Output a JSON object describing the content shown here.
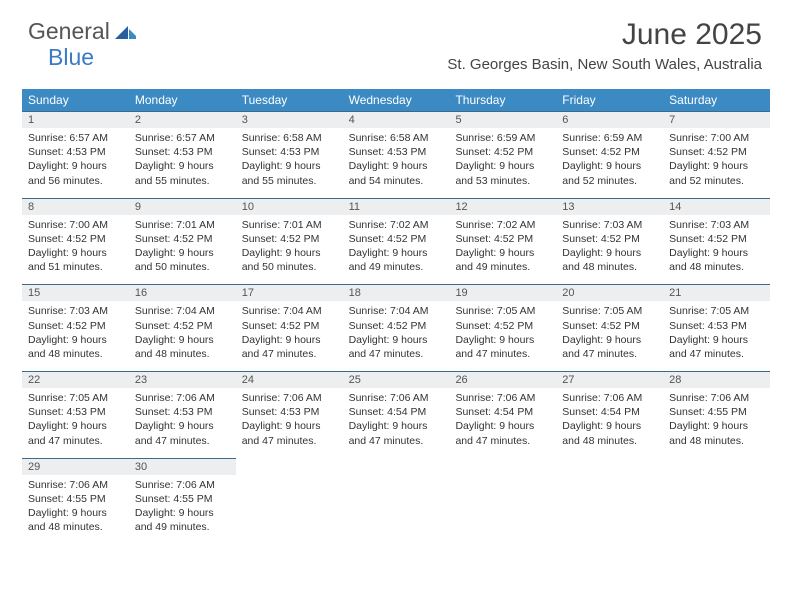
{
  "logo": {
    "general": "General",
    "blue": "Blue"
  },
  "title": "June 2025",
  "location": "St. Georges Basin, New South Wales, Australia",
  "colors": {
    "header_bar": "#3b8ac4",
    "day_top_border": "#3b6b8c",
    "day_num_bg": "#eceeef",
    "logo_blue": "#3b7bc4",
    "text": "#333333"
  },
  "weekdays": [
    "Sunday",
    "Monday",
    "Tuesday",
    "Wednesday",
    "Thursday",
    "Friday",
    "Saturday"
  ],
  "weeks": [
    [
      {
        "n": "1",
        "sr": "Sunrise: 6:57 AM",
        "ss": "Sunset: 4:53 PM",
        "d1": "Daylight: 9 hours",
        "d2": "and 56 minutes."
      },
      {
        "n": "2",
        "sr": "Sunrise: 6:57 AM",
        "ss": "Sunset: 4:53 PM",
        "d1": "Daylight: 9 hours",
        "d2": "and 55 minutes."
      },
      {
        "n": "3",
        "sr": "Sunrise: 6:58 AM",
        "ss": "Sunset: 4:53 PM",
        "d1": "Daylight: 9 hours",
        "d2": "and 55 minutes."
      },
      {
        "n": "4",
        "sr": "Sunrise: 6:58 AM",
        "ss": "Sunset: 4:53 PM",
        "d1": "Daylight: 9 hours",
        "d2": "and 54 minutes."
      },
      {
        "n": "5",
        "sr": "Sunrise: 6:59 AM",
        "ss": "Sunset: 4:52 PM",
        "d1": "Daylight: 9 hours",
        "d2": "and 53 minutes."
      },
      {
        "n": "6",
        "sr": "Sunrise: 6:59 AM",
        "ss": "Sunset: 4:52 PM",
        "d1": "Daylight: 9 hours",
        "d2": "and 52 minutes."
      },
      {
        "n": "7",
        "sr": "Sunrise: 7:00 AM",
        "ss": "Sunset: 4:52 PM",
        "d1": "Daylight: 9 hours",
        "d2": "and 52 minutes."
      }
    ],
    [
      {
        "n": "8",
        "sr": "Sunrise: 7:00 AM",
        "ss": "Sunset: 4:52 PM",
        "d1": "Daylight: 9 hours",
        "d2": "and 51 minutes."
      },
      {
        "n": "9",
        "sr": "Sunrise: 7:01 AM",
        "ss": "Sunset: 4:52 PM",
        "d1": "Daylight: 9 hours",
        "d2": "and 50 minutes."
      },
      {
        "n": "10",
        "sr": "Sunrise: 7:01 AM",
        "ss": "Sunset: 4:52 PM",
        "d1": "Daylight: 9 hours",
        "d2": "and 50 minutes."
      },
      {
        "n": "11",
        "sr": "Sunrise: 7:02 AM",
        "ss": "Sunset: 4:52 PM",
        "d1": "Daylight: 9 hours",
        "d2": "and 49 minutes."
      },
      {
        "n": "12",
        "sr": "Sunrise: 7:02 AM",
        "ss": "Sunset: 4:52 PM",
        "d1": "Daylight: 9 hours",
        "d2": "and 49 minutes."
      },
      {
        "n": "13",
        "sr": "Sunrise: 7:03 AM",
        "ss": "Sunset: 4:52 PM",
        "d1": "Daylight: 9 hours",
        "d2": "and 48 minutes."
      },
      {
        "n": "14",
        "sr": "Sunrise: 7:03 AM",
        "ss": "Sunset: 4:52 PM",
        "d1": "Daylight: 9 hours",
        "d2": "and 48 minutes."
      }
    ],
    [
      {
        "n": "15",
        "sr": "Sunrise: 7:03 AM",
        "ss": "Sunset: 4:52 PM",
        "d1": "Daylight: 9 hours",
        "d2": "and 48 minutes."
      },
      {
        "n": "16",
        "sr": "Sunrise: 7:04 AM",
        "ss": "Sunset: 4:52 PM",
        "d1": "Daylight: 9 hours",
        "d2": "and 48 minutes."
      },
      {
        "n": "17",
        "sr": "Sunrise: 7:04 AM",
        "ss": "Sunset: 4:52 PM",
        "d1": "Daylight: 9 hours",
        "d2": "and 47 minutes."
      },
      {
        "n": "18",
        "sr": "Sunrise: 7:04 AM",
        "ss": "Sunset: 4:52 PM",
        "d1": "Daylight: 9 hours",
        "d2": "and 47 minutes."
      },
      {
        "n": "19",
        "sr": "Sunrise: 7:05 AM",
        "ss": "Sunset: 4:52 PM",
        "d1": "Daylight: 9 hours",
        "d2": "and 47 minutes."
      },
      {
        "n": "20",
        "sr": "Sunrise: 7:05 AM",
        "ss": "Sunset: 4:52 PM",
        "d1": "Daylight: 9 hours",
        "d2": "and 47 minutes."
      },
      {
        "n": "21",
        "sr": "Sunrise: 7:05 AM",
        "ss": "Sunset: 4:53 PM",
        "d1": "Daylight: 9 hours",
        "d2": "and 47 minutes."
      }
    ],
    [
      {
        "n": "22",
        "sr": "Sunrise: 7:05 AM",
        "ss": "Sunset: 4:53 PM",
        "d1": "Daylight: 9 hours",
        "d2": "and 47 minutes."
      },
      {
        "n": "23",
        "sr": "Sunrise: 7:06 AM",
        "ss": "Sunset: 4:53 PM",
        "d1": "Daylight: 9 hours",
        "d2": "and 47 minutes."
      },
      {
        "n": "24",
        "sr": "Sunrise: 7:06 AM",
        "ss": "Sunset: 4:53 PM",
        "d1": "Daylight: 9 hours",
        "d2": "and 47 minutes."
      },
      {
        "n": "25",
        "sr": "Sunrise: 7:06 AM",
        "ss": "Sunset: 4:54 PM",
        "d1": "Daylight: 9 hours",
        "d2": "and 47 minutes."
      },
      {
        "n": "26",
        "sr": "Sunrise: 7:06 AM",
        "ss": "Sunset: 4:54 PM",
        "d1": "Daylight: 9 hours",
        "d2": "and 47 minutes."
      },
      {
        "n": "27",
        "sr": "Sunrise: 7:06 AM",
        "ss": "Sunset: 4:54 PM",
        "d1": "Daylight: 9 hours",
        "d2": "and 48 minutes."
      },
      {
        "n": "28",
        "sr": "Sunrise: 7:06 AM",
        "ss": "Sunset: 4:55 PM",
        "d1": "Daylight: 9 hours",
        "d2": "and 48 minutes."
      }
    ],
    [
      {
        "n": "29",
        "sr": "Sunrise: 7:06 AM",
        "ss": "Sunset: 4:55 PM",
        "d1": "Daylight: 9 hours",
        "d2": "and 48 minutes."
      },
      {
        "n": "30",
        "sr": "Sunrise: 7:06 AM",
        "ss": "Sunset: 4:55 PM",
        "d1": "Daylight: 9 hours",
        "d2": "and 49 minutes."
      },
      null,
      null,
      null,
      null,
      null
    ]
  ]
}
